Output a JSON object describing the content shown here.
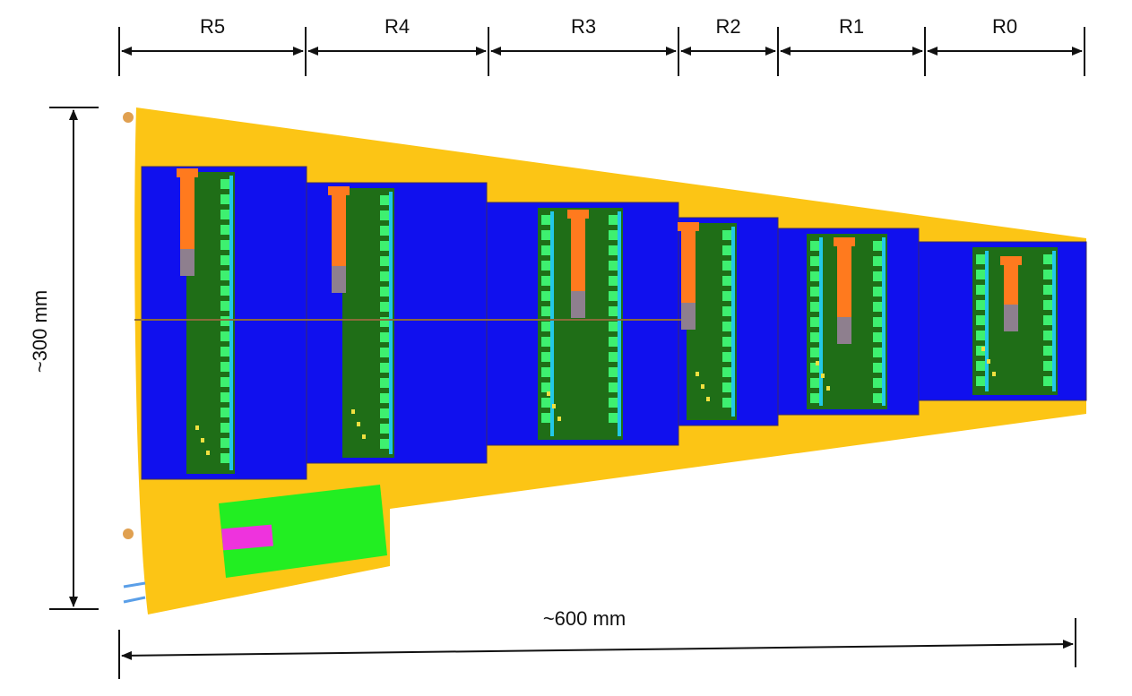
{
  "regions": [
    {
      "id": "r5",
      "label": "R5"
    },
    {
      "id": "r4",
      "label": "R4"
    },
    {
      "id": "r3",
      "label": "R3"
    },
    {
      "id": "r2",
      "label": "R2"
    },
    {
      "id": "r1",
      "label": "R1"
    },
    {
      "id": "r0",
      "label": "R0"
    }
  ],
  "dimensions": {
    "height_label": "~300 mm",
    "width_label": "~600 mm"
  },
  "colors": {
    "frame": "#fcc515",
    "sensor": "#1010ee",
    "hybrid": "#1f6e17",
    "chip": "#3ef070",
    "chip_edge": "#22c8e8",
    "connector": "#ff7a1e",
    "connector_tip": "#8e7f8e",
    "psu_board": "#22ee22",
    "psu_chip": "#ee33dd",
    "pins": "#e0a050",
    "cooling": "#5a9fe8",
    "arrow": "#111111"
  }
}
